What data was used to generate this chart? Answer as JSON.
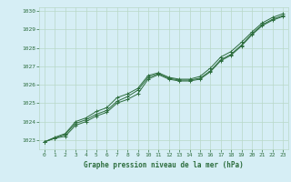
{
  "title": "Graphe pression niveau de la mer (hPa)",
  "background_color": "#d6eef5",
  "grid_color": "#b8d8c8",
  "line_color": "#2d6e3e",
  "xlim": [
    -0.5,
    23.5
  ],
  "ylim": [
    1022.5,
    1030.2
  ],
  "yticks": [
    1023,
    1024,
    1025,
    1026,
    1027,
    1028,
    1029,
    1030
  ],
  "xticks": [
    0,
    1,
    2,
    3,
    4,
    5,
    6,
    7,
    8,
    9,
    10,
    11,
    12,
    13,
    14,
    15,
    16,
    17,
    18,
    19,
    20,
    21,
    22,
    23
  ],
  "series1": [
    1022.9,
    1023.1,
    1023.2,
    1023.8,
    1024.0,
    1024.3,
    1024.5,
    1025.0,
    1025.2,
    1025.5,
    1026.3,
    1026.55,
    1026.3,
    1026.2,
    1026.2,
    1026.3,
    1026.7,
    1027.3,
    1027.6,
    1028.1,
    1028.7,
    1029.2,
    1029.5,
    1029.7
  ],
  "series2": [
    1022.9,
    1023.1,
    1023.3,
    1023.9,
    1024.1,
    1024.4,
    1024.6,
    1025.1,
    1025.35,
    1025.7,
    1026.4,
    1026.6,
    1026.35,
    1026.25,
    1026.25,
    1026.35,
    1026.75,
    1027.35,
    1027.65,
    1028.15,
    1028.75,
    1029.25,
    1029.55,
    1029.75
  ],
  "series3": [
    1022.9,
    1023.15,
    1023.35,
    1024.0,
    1024.2,
    1024.55,
    1024.75,
    1025.3,
    1025.5,
    1025.8,
    1026.5,
    1026.65,
    1026.4,
    1026.3,
    1026.3,
    1026.45,
    1026.9,
    1027.5,
    1027.8,
    1028.3,
    1028.85,
    1029.35,
    1029.65,
    1029.85
  ]
}
